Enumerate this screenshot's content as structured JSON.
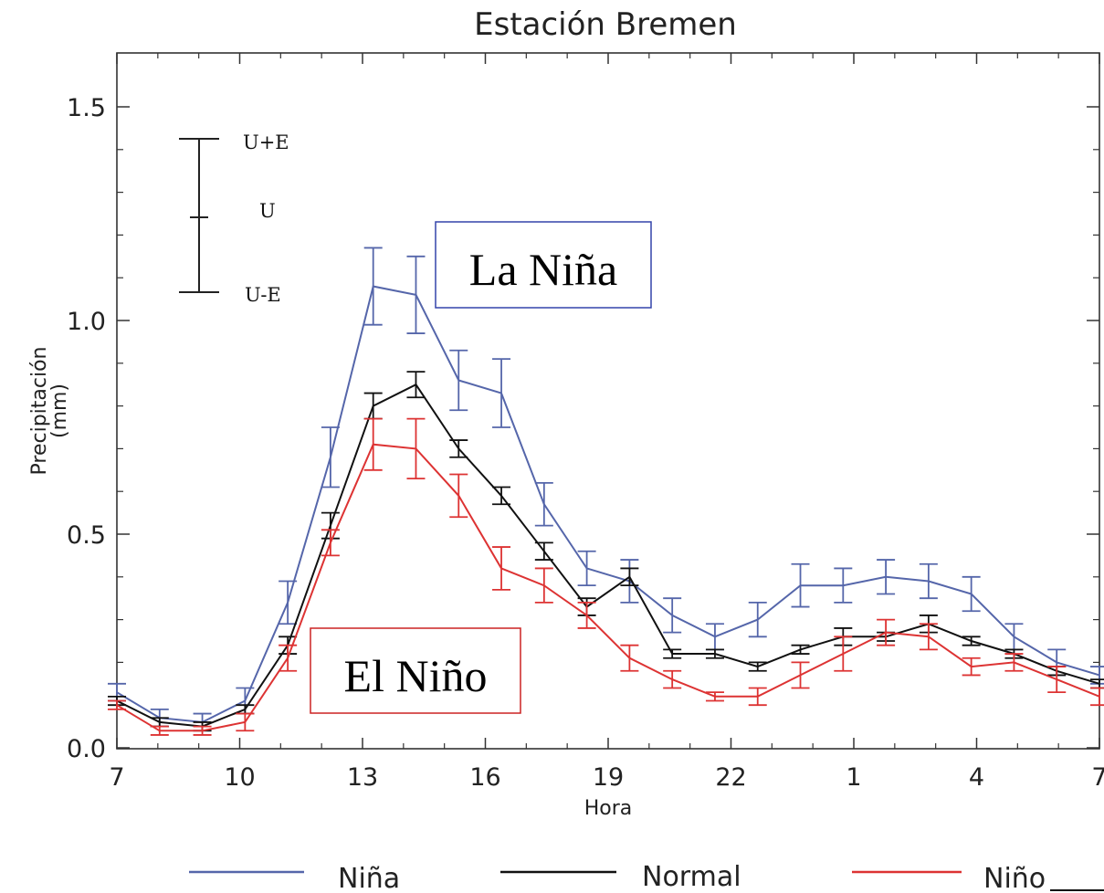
{
  "chart_data": {
    "type": "line",
    "title": "Estación Bremen",
    "xlabel": "Hora",
    "ylabel": "Precipitación\n(mm)",
    "x_tick_labels": [
      "7",
      "10",
      "13",
      "16",
      "19",
      "22",
      "1",
      "4",
      "7"
    ],
    "y_tick_labels": [
      "0.0",
      "0.5",
      "1.0",
      "1.5"
    ],
    "ylim": [
      0,
      1.6
    ],
    "grid": false,
    "error_bar_key": {
      "upper": "U+E",
      "middle": "U",
      "lower": "U-E"
    },
    "annotations": [
      {
        "text": "La Niña",
        "color": "#3344aa"
      },
      {
        "text": "El Niño",
        "color": "#cc2222"
      }
    ],
    "legend_position": "bottom",
    "series": [
      {
        "name": "Niña",
        "color": "#5566aa",
        "values": [
          0.13,
          0.07,
          0.06,
          0.11,
          0.34,
          0.68,
          1.08,
          1.06,
          0.86,
          0.83,
          0.57,
          0.42,
          0.39,
          0.31,
          0.26,
          0.3,
          0.38,
          0.38,
          0.4,
          0.39,
          0.36,
          0.26,
          0.2,
          0.17
        ],
        "errors": [
          0.02,
          0.02,
          0.02,
          0.03,
          0.05,
          0.07,
          0.09,
          0.09,
          0.07,
          0.08,
          0.05,
          0.04,
          0.05,
          0.04,
          0.03,
          0.04,
          0.05,
          0.04,
          0.04,
          0.04,
          0.04,
          0.03,
          0.03,
          0.02
        ]
      },
      {
        "name": "Normal",
        "color": "#111111",
        "values": [
          0.11,
          0.06,
          0.05,
          0.09,
          0.24,
          0.52,
          0.8,
          0.85,
          0.7,
          0.59,
          0.46,
          0.33,
          0.4,
          0.22,
          0.22,
          0.19,
          0.23,
          0.26,
          0.26,
          0.29,
          0.25,
          0.22,
          0.18,
          0.15
        ],
        "errors": [
          0.01,
          0.01,
          0.01,
          0.01,
          0.02,
          0.03,
          0.03,
          0.03,
          0.02,
          0.02,
          0.02,
          0.02,
          0.02,
          0.01,
          0.01,
          0.01,
          0.01,
          0.02,
          0.01,
          0.02,
          0.01,
          0.01,
          0.01,
          0.01
        ]
      },
      {
        "name": "Niño",
        "color": "#dd3333",
        "values": [
          0.1,
          0.04,
          0.04,
          0.06,
          0.21,
          0.48,
          0.71,
          0.7,
          0.59,
          0.42,
          0.38,
          0.31,
          0.21,
          0.16,
          0.12,
          0.12,
          0.17,
          0.22,
          0.27,
          0.26,
          0.19,
          0.2,
          0.16,
          0.12
        ],
        "errors": [
          0.01,
          0.01,
          0.01,
          0.02,
          0.03,
          0.03,
          0.06,
          0.07,
          0.05,
          0.05,
          0.04,
          0.03,
          0.03,
          0.02,
          0.01,
          0.02,
          0.03,
          0.04,
          0.03,
          0.03,
          0.02,
          0.02,
          0.03,
          0.02
        ]
      }
    ]
  }
}
